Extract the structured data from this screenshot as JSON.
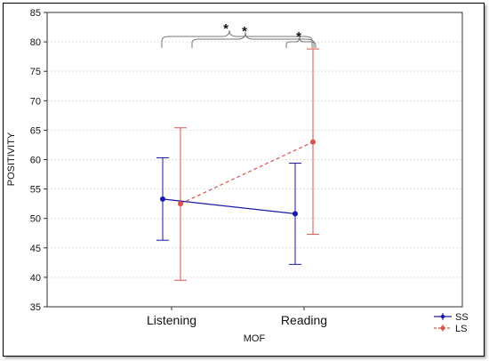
{
  "chart_data": {
    "type": "line",
    "xlabel": "MOF",
    "ylabel": "POSITIVITY",
    "ylim": [
      35,
      85
    ],
    "yticks": [
      35,
      40,
      45,
      50,
      55,
      60,
      65,
      70,
      75,
      80,
      85
    ],
    "categories": [
      "Listening",
      "Reading"
    ],
    "grid": true,
    "legend_position": "bottom-right",
    "series": [
      {
        "name": "SS",
        "color": "#1a1aa6",
        "line_style": "solid",
        "marker": "diamond",
        "values": [
          53.3,
          50.8
        ],
        "error_low": [
          46.3,
          42.2
        ],
        "error_high": [
          60.3,
          59.4
        ]
      },
      {
        "name": "LS",
        "color": "#d9534f",
        "line_style": "dashed",
        "marker": "circle",
        "values": [
          52.5,
          63.0
        ],
        "error_low": [
          39.5,
          47.3
        ],
        "error_high": [
          65.4,
          78.8
        ]
      }
    ],
    "annotations": [
      "*",
      "*",
      "*"
    ]
  }
}
